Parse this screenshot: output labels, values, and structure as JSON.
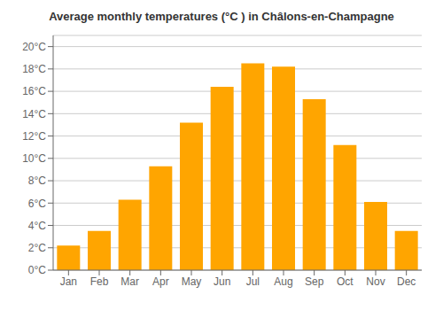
{
  "chart_data": {
    "type": "bar",
    "title": "Average monthly temperatures (°C ) in Châlons-en-Champagne",
    "categories": [
      "Jan",
      "Feb",
      "Mar",
      "Apr",
      "May",
      "Jun",
      "Jul",
      "Aug",
      "Sep",
      "Oct",
      "Nov",
      "Dec"
    ],
    "values": [
      2.2,
      3.5,
      6.3,
      9.3,
      13.2,
      16.4,
      18.5,
      18.2,
      15.3,
      11.2,
      6.1,
      3.5
    ],
    "color": "#FFA500",
    "ylim": [
      0,
      21
    ],
    "yticks": [
      {
        "value": 0,
        "label": "0°C"
      },
      {
        "value": 2,
        "label": "2°C"
      },
      {
        "value": 4,
        "label": "4°C"
      },
      {
        "value": 6,
        "label": "6°C"
      },
      {
        "value": 8,
        "label": "8°C"
      },
      {
        "value": 10,
        "label": "10°C"
      },
      {
        "value": 12,
        "label": "12°C"
      },
      {
        "value": 14,
        "label": "14°C"
      },
      {
        "value": 16,
        "label": "16°C"
      },
      {
        "value": 18,
        "label": "18°C"
      },
      {
        "value": 20,
        "label": "20°C"
      }
    ],
    "grid": true
  }
}
